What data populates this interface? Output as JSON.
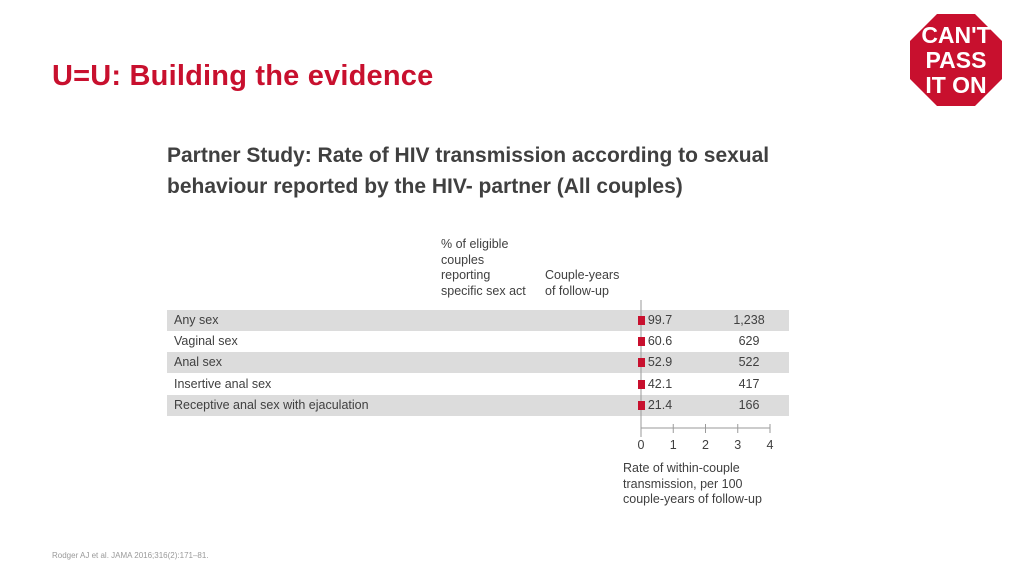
{
  "slide": {
    "title": "U=U: Building the evidence",
    "footnote": "Rodger AJ et al. JAMA 2016;316(2):171–81."
  },
  "logo": {
    "lines": [
      "CAN'T",
      "PASS",
      "IT ON"
    ],
    "color": "#c8102e"
  },
  "chart_data": {
    "type": "table",
    "title": "Partner Study: Rate of HIV transmission according to sexual behaviour reported by the HIV- partner (All couples)",
    "columns": [
      "% of eligible\ncouples\nreporting\nspecific sex act",
      "Couple-years\nof follow-up"
    ],
    "rows": [
      {
        "label": "Any sex",
        "pct": "99.7",
        "couple_years": "1,238",
        "rate": 0
      },
      {
        "label": "Vaginal sex",
        "pct": "60.6",
        "couple_years": "629",
        "rate": 0
      },
      {
        "label": "Anal sex",
        "pct": "52.9",
        "couple_years": "522",
        "rate": 0
      },
      {
        "label": "Insertive anal sex",
        "pct": "42.1",
        "couple_years": "417",
        "rate": 0
      },
      {
        "label": "Receptive anal sex with ejaculation",
        "pct": "21.4",
        "couple_years": "166",
        "rate": 0
      }
    ],
    "x_axis": {
      "label": "Rate of within-couple\ntransmission, per 100\ncouple-years of follow-up",
      "ticks": [
        0,
        1,
        2,
        3,
        4
      ],
      "range": [
        0,
        4
      ]
    },
    "marker_color": "#c8102e"
  }
}
